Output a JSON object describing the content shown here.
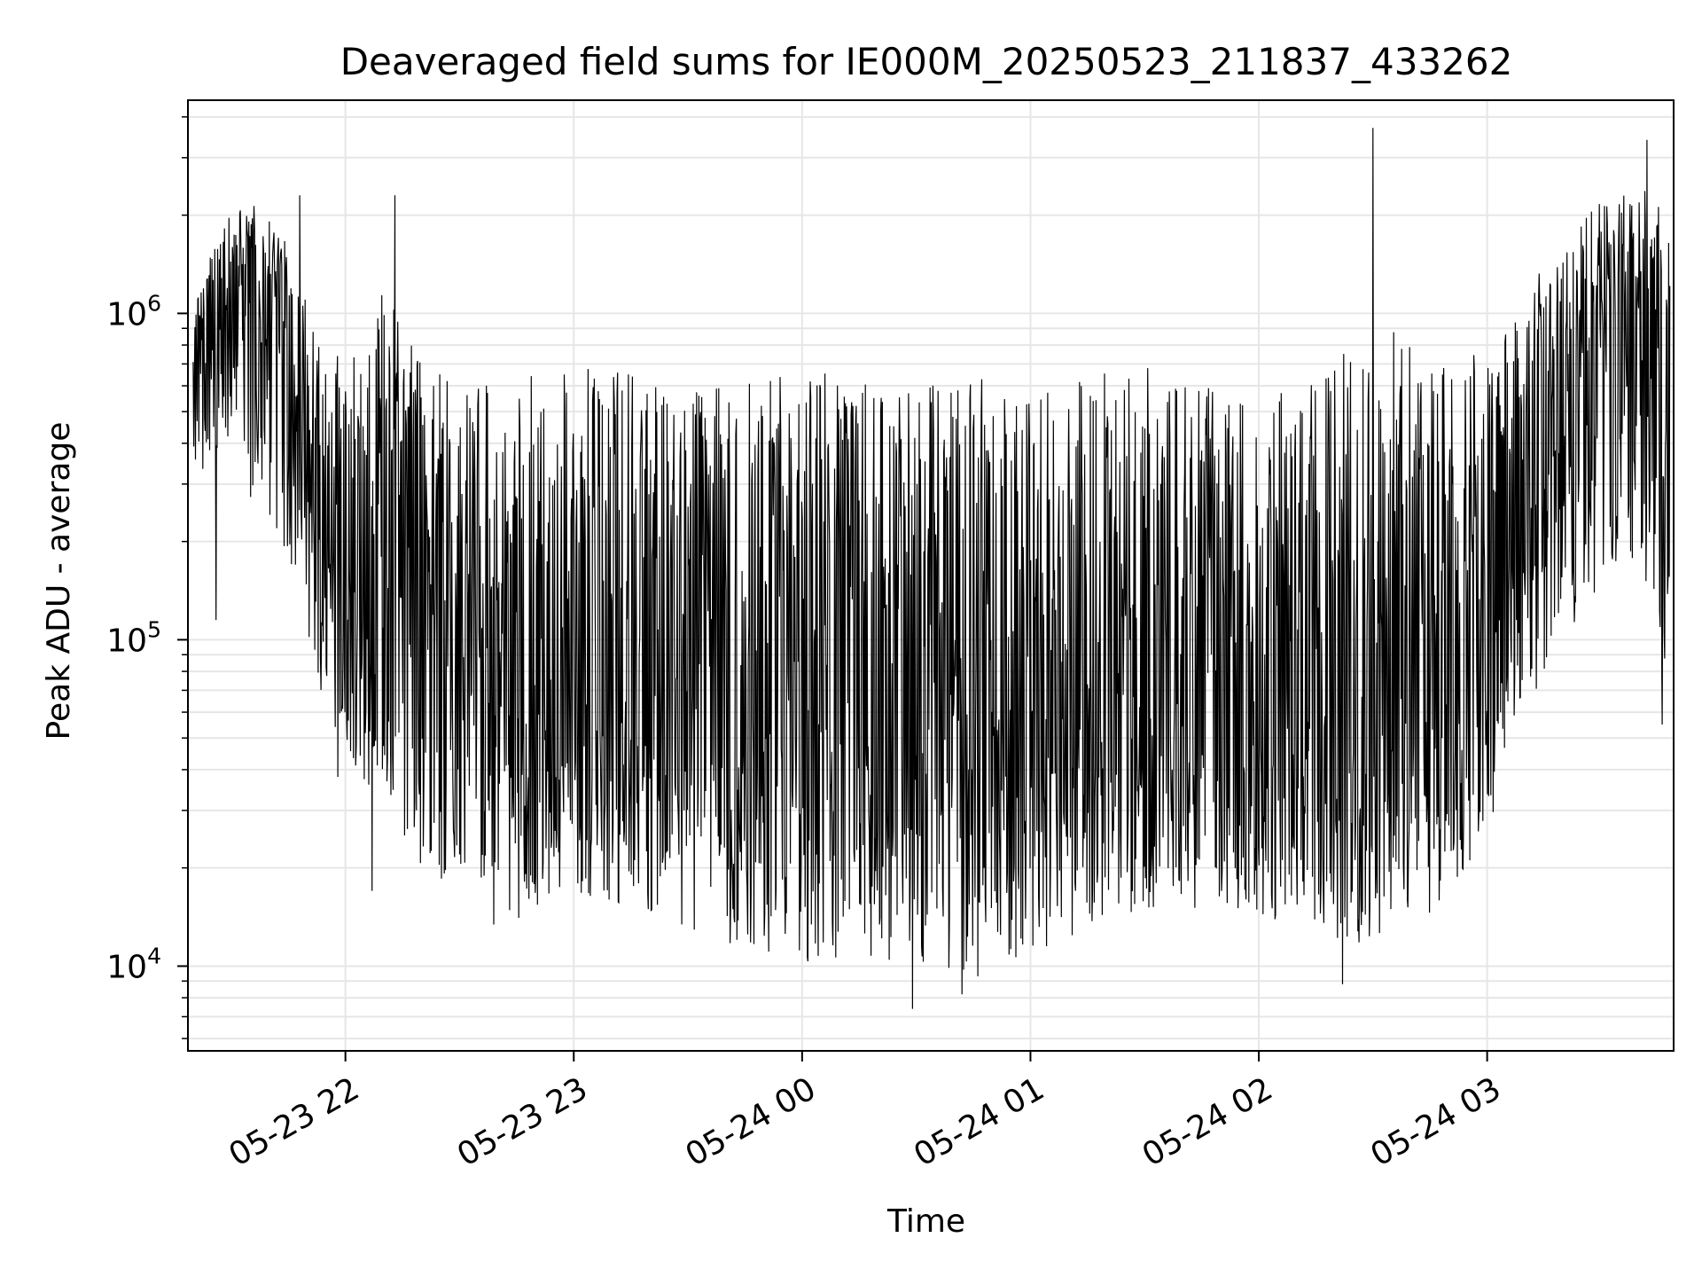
{
  "chart_data": {
    "type": "line",
    "title": "Deaveraged field sums for IE000M_20250523_211837_433262",
    "xlabel": "Time",
    "ylabel": "Peak ADU - average",
    "yscale": "log",
    "ylim": [
      5500,
      4500000
    ],
    "xlim": [
      "2025-05-23T21:18:37",
      "2025-05-24T03:49:00"
    ],
    "grid": true,
    "line_color": "#000000",
    "grid_color": "#e6e6e6",
    "x_ticks": [
      {
        "t": "2025-05-23T22:00:00",
        "label": "05-23 22"
      },
      {
        "t": "2025-05-23T23:00:00",
        "label": "05-23 23"
      },
      {
        "t": "2025-05-24T00:00:00",
        "label": "05-24 00"
      },
      {
        "t": "2025-05-24T01:00:00",
        "label": "05-24 01"
      },
      {
        "t": "2025-05-24T02:00:00",
        "label": "05-24 02"
      },
      {
        "t": "2025-05-24T03:00:00",
        "label": "05-24 03"
      }
    ],
    "y_ticks": [
      {
        "value": 10000,
        "base": "10",
        "exp": "4"
      },
      {
        "value": 100000,
        "base": "10",
        "exp": "5"
      },
      {
        "value": 1000000,
        "base": "10",
        "exp": "6"
      }
    ],
    "series": [
      {
        "x": [
          "2025-05-23T21:20:00",
          "2025-05-23T21:25:00",
          "2025-05-23T21:30:00",
          "2025-05-23T21:35:00",
          "2025-05-23T21:40:00",
          "2025-05-23T21:45:00",
          "2025-05-23T21:50:00",
          "2025-05-23T21:55:00",
          "2025-05-23T22:00:00",
          "2025-05-23T22:05:00",
          "2025-05-23T22:10:00",
          "2025-05-23T22:15:00",
          "2025-05-23T22:20:00",
          "2025-05-23T22:30:00",
          "2025-05-23T22:40:00",
          "2025-05-23T22:50:00",
          "2025-05-23T23:00:00",
          "2025-05-23T23:15:00",
          "2025-05-23T23:30:00",
          "2025-05-23T23:45:00",
          "2025-05-24T00:00:00",
          "2025-05-24T00:15:00",
          "2025-05-24T00:30:00",
          "2025-05-24T00:45:00",
          "2025-05-24T01:00:00",
          "2025-05-24T01:15:00",
          "2025-05-24T01:30:00",
          "2025-05-24T01:45:00",
          "2025-05-24T02:00:00",
          "2025-05-24T02:15:00",
          "2025-05-24T02:30:00",
          "2025-05-24T02:45:00",
          "2025-05-24T03:00:00",
          "2025-05-24T03:10:00",
          "2025-05-24T03:20:00",
          "2025-05-24T03:30:00",
          "2025-05-24T03:40:00",
          "2025-05-24T03:48:00"
        ],
        "y": [
          700000,
          1000000,
          1100000,
          1400000,
          1200000,
          800000,
          500000,
          300000,
          200000,
          150000,
          200000,
          250000,
          150000,
          90000,
          70000,
          60000,
          65000,
          65000,
          55000,
          60000,
          70000,
          65000,
          50000,
          55000,
          75000,
          65000,
          70000,
          65000,
          60000,
          65000,
          60000,
          75000,
          130000,
          250000,
          450000,
          750000,
          900000,
          500000
        ],
        "y_low": [
          300000,
          350000,
          400000,
          250000,
          200000,
          150000,
          100000,
          60000,
          45000,
          35000,
          30000,
          25000,
          20000,
          16000,
          13000,
          14000,
          17000,
          15000,
          13000,
          11000,
          10000,
          11000,
          9000,
          9000,
          10000,
          13000,
          14000,
          15000,
          14000,
          13000,
          11000,
          14000,
          25000,
          60000,
          100000,
          150000,
          150000,
          60000
        ],
        "y_high": [
          1000000,
          1600000,
          2100000,
          2200000,
          2000000,
          1600000,
          1200000,
          900000,
          700000,
          800000,
          1200000,
          900000,
          700000,
          650000,
          600000,
          650000,
          700000,
          650000,
          600000,
          650000,
          700000,
          650000,
          600000,
          650000,
          600000,
          650000,
          700000,
          650000,
          550000,
          650000,
          1000000,
          700000,
          800000,
          1100000,
          1900000,
          2200000,
          2600000,
          2000000
        ],
        "notable_peaks": [
          {
            "t": "2025-05-23T21:48:00",
            "y": 2300000
          },
          {
            "t": "2025-05-23T22:13:00",
            "y": 2300000
          },
          {
            "t": "2025-05-24T02:30:00",
            "y": 3700000
          },
          {
            "t": "2025-05-24T03:42:00",
            "y": 3400000
          }
        ],
        "notable_dips": [
          {
            "t": "2025-05-23T21:26:00",
            "y": 115000
          },
          {
            "t": "2025-05-23T21:58:00",
            "y": 38000
          },
          {
            "t": "2025-05-23T22:07:00",
            "y": 17000
          },
          {
            "t": "2025-05-24T00:29:00",
            "y": 7400
          },
          {
            "t": "2025-05-24T00:42:00",
            "y": 8200
          },
          {
            "t": "2025-05-24T02:22:00",
            "y": 8800
          },
          {
            "t": "2025-05-24T03:46:00",
            "y": 55000
          }
        ]
      }
    ]
  }
}
